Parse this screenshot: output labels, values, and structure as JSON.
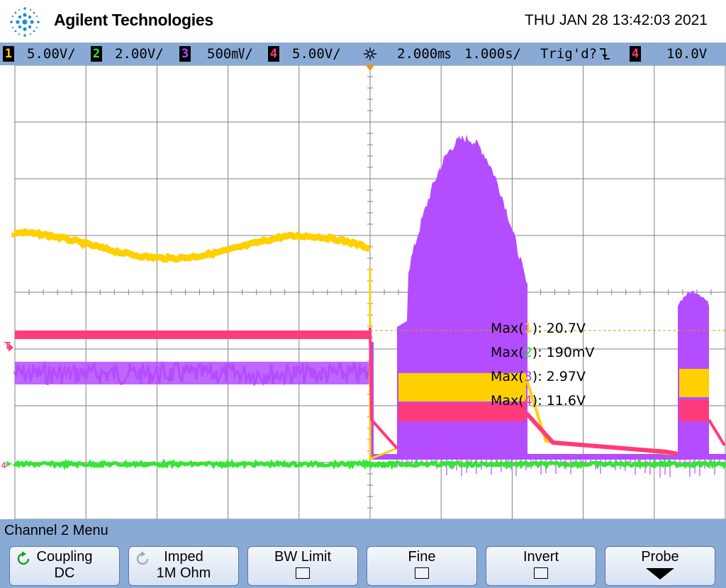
{
  "header": {
    "brand": "Agilent Technologies",
    "datetime": "THU JAN 28 13:42:03 2021"
  },
  "status": {
    "channels": [
      {
        "num": "1",
        "scale": "5.00V/",
        "color": "#ffd000"
      },
      {
        "num": "2",
        "scale": "2.00V/",
        "color": "#33e633"
      },
      {
        "num": "3",
        "scale": "500㎷/",
        "color": "#b44cff"
      },
      {
        "num": "4",
        "scale": "5.00V/",
        "color": "#ff3a7a"
      }
    ],
    "timebase_delay": "2.000㎳",
    "timebase_scale": "1.000s/",
    "trigger_state": "Trig'd?",
    "trigger_slope_icon": "falling-edge-icon",
    "trigger_source": "4",
    "trigger_level": "10.0V"
  },
  "measurements": [
    {
      "prefix": "Max(",
      "num": "1",
      "suffix": "): 20.7V"
    },
    {
      "prefix": "Max(",
      "num": "2",
      "suffix": "): 190mV"
    },
    {
      "prefix": "Max(",
      "num": "3",
      "suffix": "): 2.97V"
    },
    {
      "prefix": "Max(",
      "num": "4",
      "suffix": "): 11.6V"
    }
  ],
  "markers": {
    "trigger_marker": "T",
    "ground_marker": "4"
  },
  "menu": {
    "title": "Channel 2  Menu",
    "softkeys": [
      {
        "label": "Coupling",
        "value": "DC",
        "icon": "rotate-knob-icon"
      },
      {
        "label": "Imped",
        "value": "1M Ohm",
        "icon": "rotate-knob-icon"
      },
      {
        "label": "BW Limit",
        "checked": false
      },
      {
        "label": "Fine",
        "checked": false
      },
      {
        "label": "Invert",
        "checked": false
      },
      {
        "label": "Probe",
        "icon": "down-arrow-icon"
      }
    ]
  },
  "colors": {
    "ch1": "#ffd000",
    "ch2": "#33e633",
    "ch3": "#b44cff",
    "ch4": "#ff3a7a",
    "bar": "#8aaad6",
    "grid": "#808080"
  }
}
